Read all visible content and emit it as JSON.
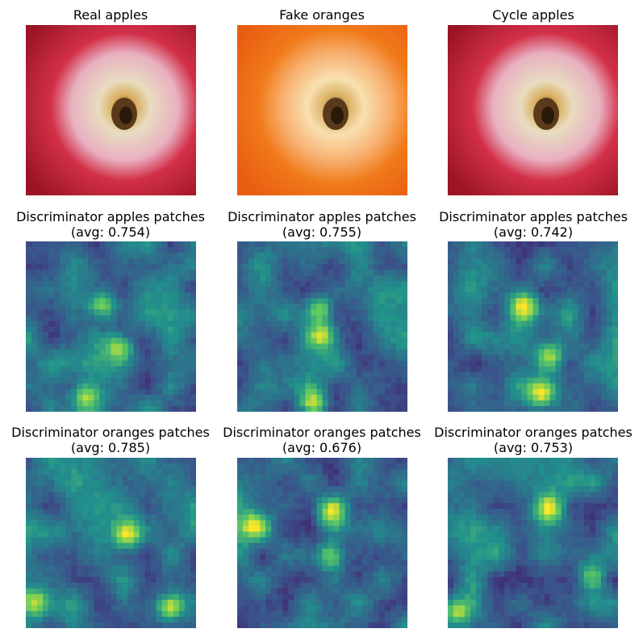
{
  "figure": {
    "rows": [
      {
        "panels": [
          {
            "title": "Real apples",
            "kind": "apple"
          },
          {
            "title": "Fake oranges",
            "kind": "orange"
          },
          {
            "title": "Cycle apples",
            "kind": "apple"
          }
        ]
      },
      {
        "panels": [
          {
            "title": "Discriminator apples patches",
            "subtitle": "(avg: 0.754)",
            "kind": "heatmap",
            "avg": 0.754
          },
          {
            "title": "Discriminator apples patches",
            "subtitle": "(avg: 0.755)",
            "kind": "heatmap",
            "avg": 0.755
          },
          {
            "title": "Discriminator apples patches",
            "subtitle": "(avg: 0.742)",
            "kind": "heatmap",
            "avg": 0.742
          }
        ]
      },
      {
        "panels": [
          {
            "title": "Discriminator oranges patches",
            "subtitle": "(avg: 0.785)",
            "kind": "heatmap",
            "avg": 0.785
          },
          {
            "title": "Discriminator oranges patches",
            "subtitle": "(avg: 0.676)",
            "kind": "heatmap",
            "avg": 0.676
          },
          {
            "title": "Discriminator oranges patches",
            "subtitle": "(avg: 0.753)",
            "kind": "heatmap",
            "avg": 0.753
          }
        ]
      }
    ],
    "colors": {
      "apple_red": "#c8182c",
      "apple_pink": "#e8a8b8",
      "orange_main": "#f07a1a",
      "orange_light": "#f8c890",
      "core": "#5a3a1a",
      "viridis": [
        "#440154",
        "#3b528b",
        "#21918c",
        "#5ec962",
        "#fde725"
      ]
    }
  },
  "chart_data": {
    "type": "heatmap",
    "panels": [
      {
        "row": 2,
        "col": 1,
        "title": "Discriminator apples patches",
        "avg": 0.754
      },
      {
        "row": 2,
        "col": 2,
        "title": "Discriminator apples patches",
        "avg": 0.755
      },
      {
        "row": 2,
        "col": 3,
        "title": "Discriminator apples patches",
        "avg": 0.742
      },
      {
        "row": 3,
        "col": 1,
        "title": "Discriminator oranges patches",
        "avg": 0.785
      },
      {
        "row": 3,
        "col": 2,
        "title": "Discriminator oranges patches",
        "avg": 0.676
      },
      {
        "row": 3,
        "col": 3,
        "title": "Discriminator oranges patches",
        "avg": 0.753
      }
    ],
    "colormap": "viridis",
    "axes": "off"
  }
}
